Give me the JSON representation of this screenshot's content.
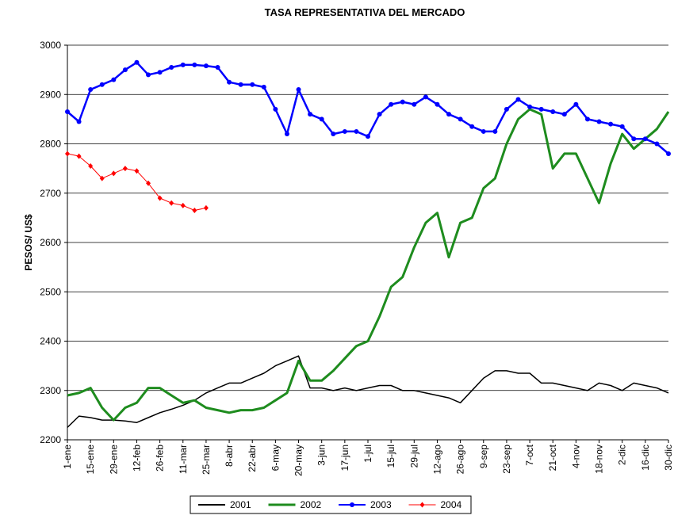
{
  "chart_data": {
    "type": "line",
    "title": "TASA REPRESENTATIVA DEL MERCADO",
    "y_label": "PESOS/ US$",
    "categories": [
      "1-ene",
      null,
      "15-ene",
      null,
      "29-ene",
      null,
      "12-feb",
      null,
      "26-feb",
      null,
      "11-mar",
      null,
      "25-mar",
      null,
      "8-abr",
      null,
      "22-abr",
      null,
      "6-may",
      null,
      "20-may",
      null,
      "3-jun",
      null,
      "17-jun",
      null,
      "1-jul",
      null,
      "15-jul",
      null,
      "29-jul",
      null,
      "12-ago",
      null,
      "26-ago",
      null,
      "9-sep",
      null,
      "23-sep",
      null,
      "7-oct",
      null,
      "21-oct",
      null,
      "4-nov",
      null,
      "18-nov",
      null,
      "2-dic",
      null,
      "16-dic",
      null,
      "30-dic"
    ],
    "ylim": [
      2200,
      3000
    ],
    "yticks": [
      2200,
      2300,
      2400,
      2500,
      2600,
      2700,
      2800,
      2900,
      3000
    ],
    "grid": true,
    "legend": "bottom",
    "series": [
      {
        "name": "2001",
        "color": "#000000",
        "marker": "none",
        "values": [
          2225,
          2248,
          2245,
          2240,
          2240,
          2238,
          2235,
          2245,
          2255,
          2262,
          2270,
          2280,
          2295,
          2305,
          2315,
          2315,
          2325,
          2335,
          2350,
          2360,
          2370,
          2305,
          2305,
          2300,
          2305,
          2300,
          2305,
          2310,
          2310,
          2300,
          2300,
          2295,
          2290,
          2285,
          2275,
          2300,
          2325,
          2340,
          2340,
          2335,
          2335,
          2315,
          2315,
          2310,
          2305,
          2300,
          2315,
          2310,
          2300,
          2315,
          2310,
          2305,
          2295
        ]
      },
      {
        "name": "2002",
        "color": "#1e8c1e",
        "marker": "none",
        "values": [
          2290,
          2295,
          2305,
          2265,
          2240,
          2265,
          2275,
          2305,
          2305,
          2290,
          2275,
          2280,
          2265,
          2260,
          2255,
          2260,
          2260,
          2265,
          2280,
          2295,
          2360,
          2320,
          2320,
          2340,
          2365,
          2390,
          2400,
          2450,
          2510,
          2530,
          2590,
          2640,
          2660,
          2570,
          2640,
          2650,
          2710,
          2730,
          2800,
          2850,
          2870,
          2860,
          2750,
          2780,
          2780,
          2730,
          2680,
          2760,
          2820,
          2790,
          2810,
          2830,
          2865
        ]
      },
      {
        "name": "2003",
        "color": "#0000ff",
        "marker": "circle",
        "values": [
          2865,
          2845,
          2910,
          2920,
          2930,
          2950,
          2965,
          2940,
          2945,
          2955,
          2960,
          2960,
          2958,
          2955,
          2925,
          2920,
          2920,
          2915,
          2870,
          2820,
          2910,
          2860,
          2850,
          2820,
          2825,
          2825,
          2815,
          2860,
          2880,
          2885,
          2880,
          2895,
          2880,
          2860,
          2850,
          2835,
          2825,
          2825,
          2870,
          2890,
          2875,
          2870,
          2865,
          2860,
          2880,
          2850,
          2845,
          2840,
          2835,
          2810,
          2810,
          2800,
          2780
        ]
      },
      {
        "name": "2004",
        "color": "#ff0000",
        "marker": "diamond",
        "values": [
          2780,
          2775,
          2755,
          2730,
          2740,
          2750,
          2745,
          2720,
          2690,
          2680,
          2675,
          2665,
          2670,
          null,
          null,
          null,
          null,
          null,
          null,
          null,
          null,
          null,
          null,
          null,
          null,
          null,
          null,
          null,
          null,
          null,
          null,
          null,
          null,
          null,
          null,
          null,
          null,
          null,
          null,
          null,
          null,
          null,
          null,
          null,
          null,
          null,
          null,
          null,
          null,
          null,
          null,
          null,
          null
        ]
      }
    ]
  }
}
